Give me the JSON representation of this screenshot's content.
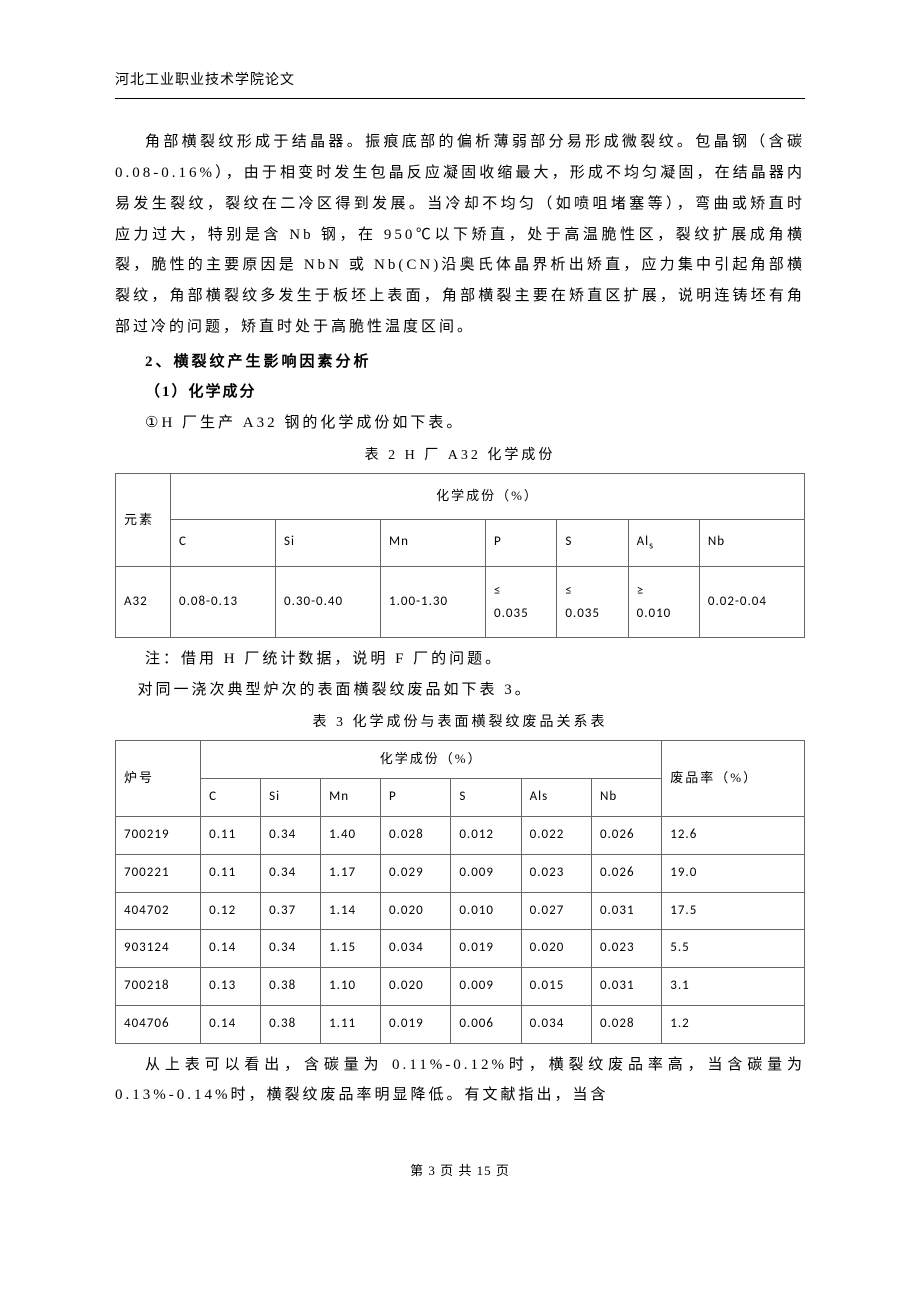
{
  "header": {
    "institution": "河北工业职业技术学院论文"
  },
  "body": {
    "para1": "角部横裂纹形成于结晶器。振痕底部的偏析薄弱部分易形成微裂纹。包晶钢（含碳 0.08-0.16%），由于相变时发生包晶反应凝固收缩最大，形成不均匀凝固，在结晶器内易发生裂纹，裂纹在二冷区得到发展。当冷却不均匀（如喷咀堵塞等），弯曲或矫直时应力过大，特别是含 Nb 钢，在 950℃以下矫直，处于高温脆性区，裂纹扩展成角横裂，脆性的主要原因是 NbN 或 Nb(CN)沿奥氏体晶界析出矫直，应力集中引起角部横裂纹，角部横裂纹多发生于板坯上表面，角部横裂主要在矫直区扩展，说明连铸坯有角部过冷的问题，矫直时处于高脆性温度区间。",
    "h2": "2、横裂纹产生影响因素分析",
    "h3": "（1）化学成分",
    "line1": "①H 厂生产 A32 钢的化学成份如下表。",
    "caption2": "表 2  H 厂 A32 化学成份",
    "note1": "注：借用 H 厂统计数据，说明 F 厂的问题。",
    "line2": "对同一浇次典型炉次的表面横裂纹废品如下表 3。",
    "caption3": "表 3 化学成份与表面横裂纹废品关系表",
    "para2": "从上表可以看出，含碳量为 0.11%-0.12%时，横裂纹废品率高，当含碳量为 0.13%-0.14%时，横裂纹废品率明显降低。有文献指出，当含"
  },
  "table2": {
    "row_label": "元素",
    "group_header": "化学成份（%）",
    "cols": [
      "C",
      "Si",
      "Mn",
      "P",
      "S",
      "Al",
      "Nb"
    ],
    "al_sub": "s",
    "grade": "A32",
    "vals": [
      "0.08-0.13",
      "0.30-0.40",
      "1.00-1.30",
      "≤0.035",
      "≤0.035",
      "≥0.010",
      "0.02-0.04"
    ]
  },
  "table3": {
    "row_label": "炉号",
    "group_header": "化学成份（%）",
    "rate_header": "废品率（%）",
    "cols": [
      "C",
      "Si",
      "Mn",
      "P",
      "S",
      "Als",
      "Nb"
    ],
    "rows": [
      {
        "id": "700219",
        "v": [
          "0.11",
          "0.34",
          "1.40",
          "0.028",
          "0.012",
          "0.022",
          "0.026"
        ],
        "rate": "12.6"
      },
      {
        "id": "700221",
        "v": [
          "0.11",
          "0.34",
          "1.17",
          "0.029",
          "0.009",
          "0.023",
          "0.026"
        ],
        "rate": "19.0"
      },
      {
        "id": "404702",
        "v": [
          "0.12",
          "0.37",
          "1.14",
          "0.020",
          "0.010",
          "0.027",
          "0.031"
        ],
        "rate": "17.5"
      },
      {
        "id": "903124",
        "v": [
          "0.14",
          "0.34",
          "1.15",
          "0.034",
          "0.019",
          "0.020",
          "0.023"
        ],
        "rate": "5.5"
      },
      {
        "id": "700218",
        "v": [
          "0.13",
          "0.38",
          "1.10",
          "0.020",
          "0.009",
          "0.015",
          "0.031"
        ],
        "rate": "3.1"
      },
      {
        "id": "404706",
        "v": [
          "0.14",
          "0.38",
          "1.11",
          "0.019",
          "0.006",
          "0.034",
          "0.028"
        ],
        "rate": "1.2"
      }
    ]
  },
  "footer": {
    "page_text": "第 3 页 共 15 页"
  }
}
